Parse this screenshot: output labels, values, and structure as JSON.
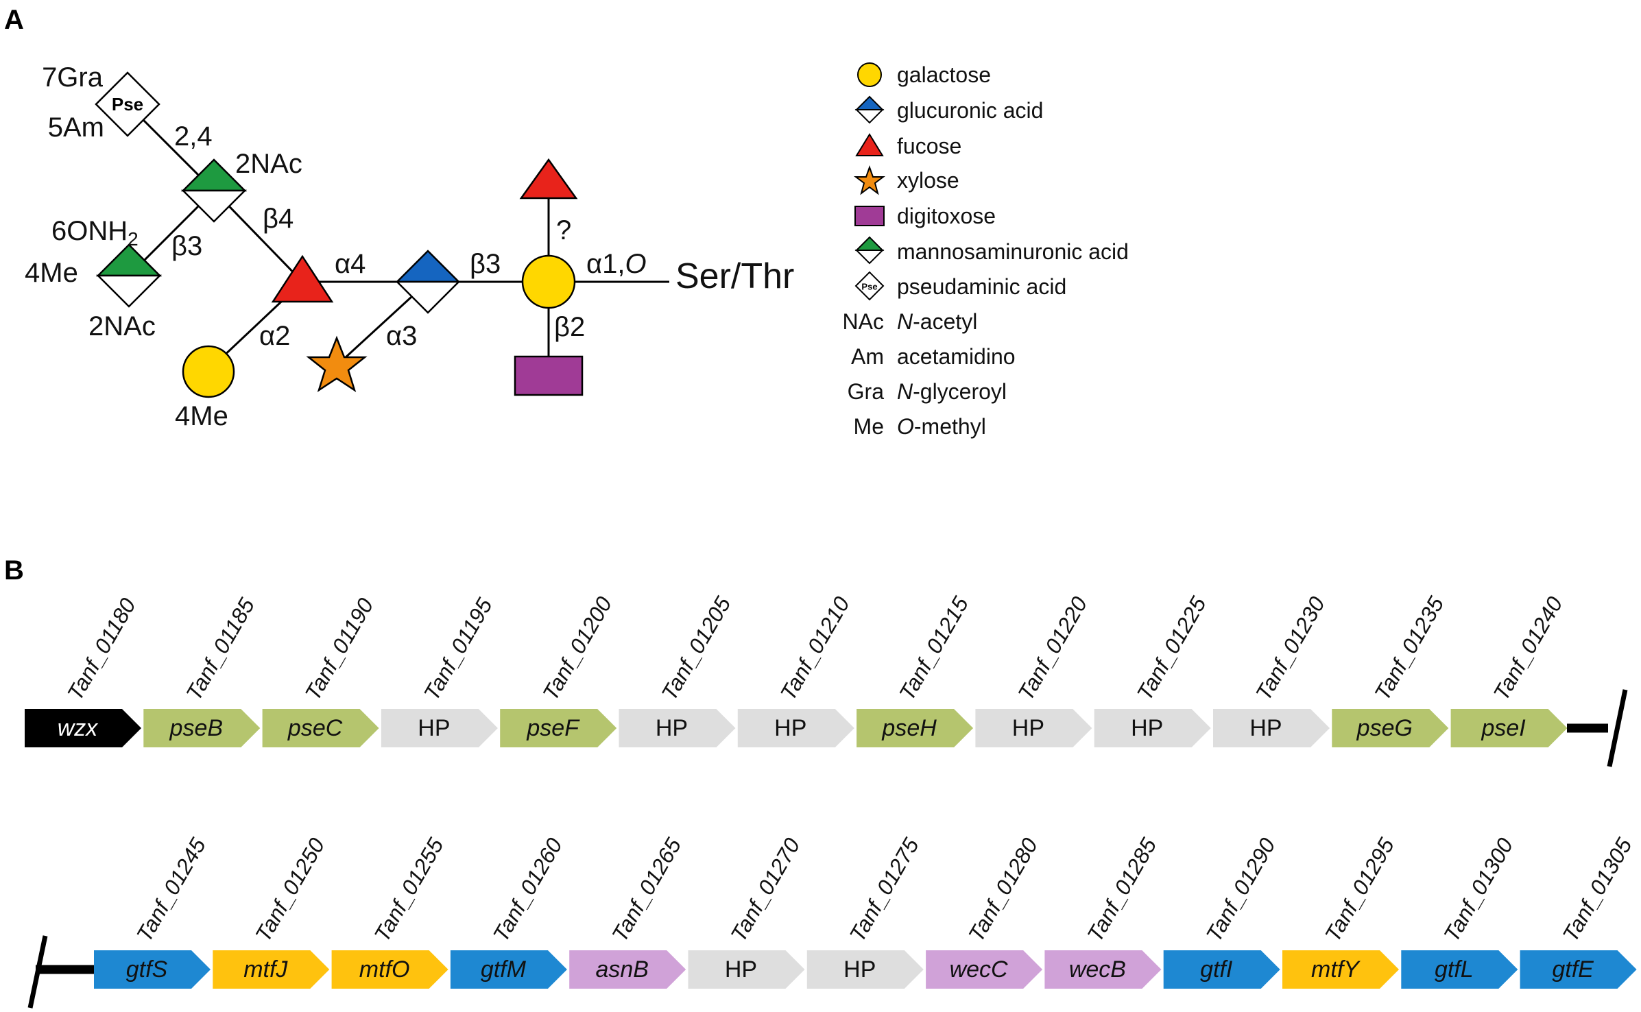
{
  "panels": {
    "a": "A",
    "b": "B"
  },
  "colors": {
    "galactose": "#ffd700",
    "glucuronic": "#1565c0",
    "fucose": "#e8231b",
    "xylose": "#f28c0f",
    "digitoxose": "#a03b96",
    "mannosaminuronic": "#1e9a40",
    "pse_gene": "#b5c56e",
    "hp_gene": "#dedede",
    "wzx_gene": "#000000",
    "gtf_gene": "#1e88d2",
    "mtf_gene": "#ffc20e",
    "purple_gene": "#d0a2d8"
  },
  "glycan": {
    "pse_symbol": "Pse",
    "pse_mod_top": "7Gra",
    "pse_mod_bottom": "5Am",
    "link_pse": "2,4",
    "mannac_top_mod": "2NAc",
    "link_beta4": "β4",
    "mannac2_mod_top": "6ONH",
    "mannac2_mod_top_sub": "2",
    "mannac2_mod_left": "4Me",
    "mannac2_mod_bottom": "2NAc",
    "link_beta3_left": "β3",
    "link_alpha4": "α4",
    "link_alpha2": "α2",
    "gal_mod": "4Me",
    "link_alpha3": "α3",
    "link_beta3": "β3",
    "link_question": "?",
    "link_alpha1": "α1,",
    "link_alpha1_o": "O",
    "link_beta2": "β2",
    "ser_thr": "Ser/Thr"
  },
  "legend": {
    "galactose": "galactose",
    "glucuronic": "glucuronic acid",
    "fucose": "fucose",
    "xylose": "xylose",
    "digitoxose": "digitoxose",
    "mannosaminuronic": "mannosaminuronic acid",
    "pse_icon": "Pse",
    "pseudaminic": "pseudaminic acid",
    "nac_abbr": "NAc",
    "nac_letter": "N",
    "nac_rest": "-acetyl",
    "am_abbr": "Am",
    "am_text": "acetamidino",
    "gra_abbr": "Gra",
    "gra_letter": "N",
    "gra_rest": "-glyceroyl",
    "me_abbr": "Me",
    "me_letter": "O",
    "me_rest": "-methyl"
  },
  "row1": [
    {
      "tag": "Tanf_01180",
      "label": "wzx",
      "kind": "wzx",
      "italic": true
    },
    {
      "tag": "Tanf_01185",
      "label": "pseB",
      "kind": "pse",
      "italic": true
    },
    {
      "tag": "Tanf_01190",
      "label": "pseC",
      "kind": "pse",
      "italic": true
    },
    {
      "tag": "Tanf_01195",
      "label": "HP",
      "kind": "hp",
      "italic": false
    },
    {
      "tag": "Tanf_01200",
      "label": "pseF",
      "kind": "pse",
      "italic": true
    },
    {
      "tag": "Tanf_01205",
      "label": "HP",
      "kind": "hp",
      "italic": false
    },
    {
      "tag": "Tanf_01210",
      "label": "HP",
      "kind": "hp",
      "italic": false
    },
    {
      "tag": "Tanf_01215",
      "label": "pseH",
      "kind": "pse",
      "italic": true
    },
    {
      "tag": "Tanf_01220",
      "label": "HP",
      "kind": "hp",
      "italic": false
    },
    {
      "tag": "Tanf_01225",
      "label": "HP",
      "kind": "hp",
      "italic": false
    },
    {
      "tag": "Tanf_01230",
      "label": "HP",
      "kind": "hp",
      "italic": false
    },
    {
      "tag": "Tanf_01235",
      "label": "pseG",
      "kind": "pse",
      "italic": true
    },
    {
      "tag": "Tanf_01240",
      "label": "pseI",
      "kind": "pse",
      "italic": true
    }
  ],
  "row2": [
    {
      "tag": "Tanf_01245",
      "label": "gtfS",
      "kind": "gtf",
      "italic": true
    },
    {
      "tag": "Tanf_01250",
      "label": "mtfJ",
      "kind": "mtf",
      "italic": true
    },
    {
      "tag": "Tanf_01255",
      "label": "mtfO",
      "kind": "mtf",
      "italic": true
    },
    {
      "tag": "Tanf_01260",
      "label": "gtfM",
      "kind": "gtf",
      "italic": true
    },
    {
      "tag": "Tanf_01265",
      "label": "asnB",
      "kind": "purple",
      "italic": true
    },
    {
      "tag": "Tanf_01270",
      "label": "HP",
      "kind": "hp",
      "italic": false
    },
    {
      "tag": "Tanf_01275",
      "label": "HP",
      "kind": "hp",
      "italic": false
    },
    {
      "tag": "Tanf_01280",
      "label": "wecC",
      "kind": "purple",
      "italic": true
    },
    {
      "tag": "Tanf_01285",
      "label": "wecB",
      "kind": "purple",
      "italic": true
    },
    {
      "tag": "Tanf_01290",
      "label": "gtfI",
      "kind": "gtf",
      "italic": true
    },
    {
      "tag": "Tanf_01295",
      "label": "mtfY",
      "kind": "mtf",
      "italic": true
    },
    {
      "tag": "Tanf_01300",
      "label": "gtfL",
      "kind": "gtf",
      "italic": true
    },
    {
      "tag": "Tanf_01305",
      "label": "gtfE",
      "kind": "gtf",
      "italic": true
    }
  ]
}
